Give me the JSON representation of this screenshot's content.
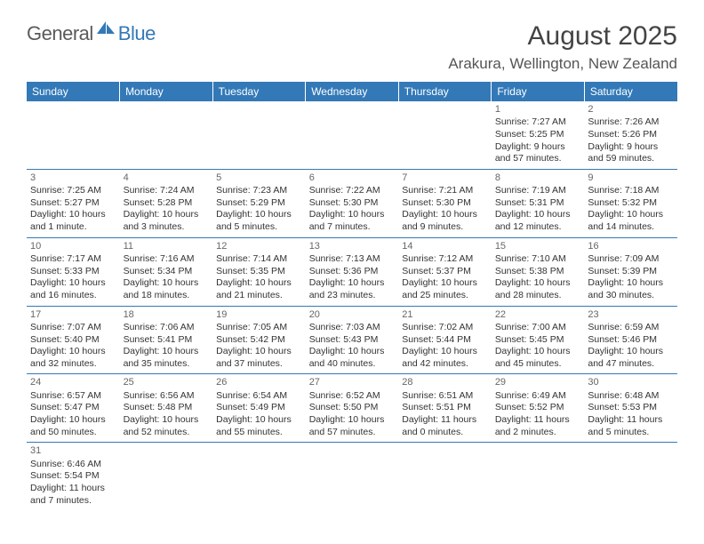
{
  "logo": {
    "part1": "General",
    "part2": "Blue"
  },
  "title": "August 2025",
  "location": "Arakura, Wellington, New Zealand",
  "header_bg": "#3379b7",
  "days": [
    "Sunday",
    "Monday",
    "Tuesday",
    "Wednesday",
    "Thursday",
    "Friday",
    "Saturday"
  ],
  "weeks": [
    [
      null,
      null,
      null,
      null,
      null,
      {
        "n": "1",
        "sr": "7:27 AM",
        "ss": "5:25 PM",
        "dl": "9 hours and 57 minutes."
      },
      {
        "n": "2",
        "sr": "7:26 AM",
        "ss": "5:26 PM",
        "dl": "9 hours and 59 minutes."
      }
    ],
    [
      {
        "n": "3",
        "sr": "7:25 AM",
        "ss": "5:27 PM",
        "dl": "10 hours and 1 minute."
      },
      {
        "n": "4",
        "sr": "7:24 AM",
        "ss": "5:28 PM",
        "dl": "10 hours and 3 minutes."
      },
      {
        "n": "5",
        "sr": "7:23 AM",
        "ss": "5:29 PM",
        "dl": "10 hours and 5 minutes."
      },
      {
        "n": "6",
        "sr": "7:22 AM",
        "ss": "5:30 PM",
        "dl": "10 hours and 7 minutes."
      },
      {
        "n": "7",
        "sr": "7:21 AM",
        "ss": "5:30 PM",
        "dl": "10 hours and 9 minutes."
      },
      {
        "n": "8",
        "sr": "7:19 AM",
        "ss": "5:31 PM",
        "dl": "10 hours and 12 minutes."
      },
      {
        "n": "9",
        "sr": "7:18 AM",
        "ss": "5:32 PM",
        "dl": "10 hours and 14 minutes."
      }
    ],
    [
      {
        "n": "10",
        "sr": "7:17 AM",
        "ss": "5:33 PM",
        "dl": "10 hours and 16 minutes."
      },
      {
        "n": "11",
        "sr": "7:16 AM",
        "ss": "5:34 PM",
        "dl": "10 hours and 18 minutes."
      },
      {
        "n": "12",
        "sr": "7:14 AM",
        "ss": "5:35 PM",
        "dl": "10 hours and 21 minutes."
      },
      {
        "n": "13",
        "sr": "7:13 AM",
        "ss": "5:36 PM",
        "dl": "10 hours and 23 minutes."
      },
      {
        "n": "14",
        "sr": "7:12 AM",
        "ss": "5:37 PM",
        "dl": "10 hours and 25 minutes."
      },
      {
        "n": "15",
        "sr": "7:10 AM",
        "ss": "5:38 PM",
        "dl": "10 hours and 28 minutes."
      },
      {
        "n": "16",
        "sr": "7:09 AM",
        "ss": "5:39 PM",
        "dl": "10 hours and 30 minutes."
      }
    ],
    [
      {
        "n": "17",
        "sr": "7:07 AM",
        "ss": "5:40 PM",
        "dl": "10 hours and 32 minutes."
      },
      {
        "n": "18",
        "sr": "7:06 AM",
        "ss": "5:41 PM",
        "dl": "10 hours and 35 minutes."
      },
      {
        "n": "19",
        "sr": "7:05 AM",
        "ss": "5:42 PM",
        "dl": "10 hours and 37 minutes."
      },
      {
        "n": "20",
        "sr": "7:03 AM",
        "ss": "5:43 PM",
        "dl": "10 hours and 40 minutes."
      },
      {
        "n": "21",
        "sr": "7:02 AM",
        "ss": "5:44 PM",
        "dl": "10 hours and 42 minutes."
      },
      {
        "n": "22",
        "sr": "7:00 AM",
        "ss": "5:45 PM",
        "dl": "10 hours and 45 minutes."
      },
      {
        "n": "23",
        "sr": "6:59 AM",
        "ss": "5:46 PM",
        "dl": "10 hours and 47 minutes."
      }
    ],
    [
      {
        "n": "24",
        "sr": "6:57 AM",
        "ss": "5:47 PM",
        "dl": "10 hours and 50 minutes."
      },
      {
        "n": "25",
        "sr": "6:56 AM",
        "ss": "5:48 PM",
        "dl": "10 hours and 52 minutes."
      },
      {
        "n": "26",
        "sr": "6:54 AM",
        "ss": "5:49 PM",
        "dl": "10 hours and 55 minutes."
      },
      {
        "n": "27",
        "sr": "6:52 AM",
        "ss": "5:50 PM",
        "dl": "10 hours and 57 minutes."
      },
      {
        "n": "28",
        "sr": "6:51 AM",
        "ss": "5:51 PM",
        "dl": "11 hours and 0 minutes."
      },
      {
        "n": "29",
        "sr": "6:49 AM",
        "ss": "5:52 PM",
        "dl": "11 hours and 2 minutes."
      },
      {
        "n": "30",
        "sr": "6:48 AM",
        "ss": "5:53 PM",
        "dl": "11 hours and 5 minutes."
      }
    ],
    [
      {
        "n": "31",
        "sr": "6:46 AM",
        "ss": "5:54 PM",
        "dl": "11 hours and 7 minutes."
      },
      null,
      null,
      null,
      null,
      null,
      null
    ]
  ],
  "labels": {
    "sunrise": "Sunrise:",
    "sunset": "Sunset:",
    "daylight": "Daylight:"
  }
}
